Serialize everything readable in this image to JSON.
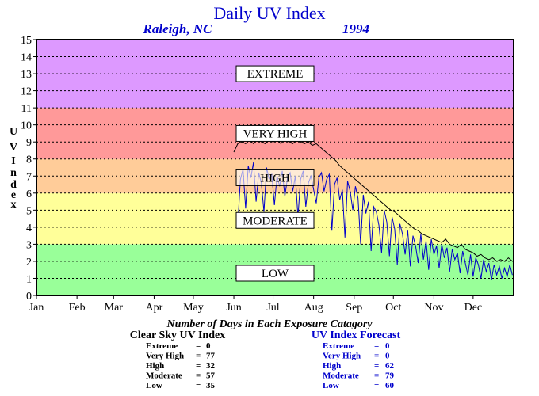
{
  "chart_data": {
    "type": "line",
    "title": "Daily UV Index",
    "location": "Raleigh, NC",
    "year": "1994",
    "ylabel": "UV Index",
    "ylim": [
      0,
      15
    ],
    "yticks": [
      "0",
      "1",
      "2",
      "3",
      "4",
      "5",
      "6",
      "7",
      "8",
      "9",
      "10",
      "11",
      "12",
      "13",
      "14",
      "15"
    ],
    "months": [
      "Jan",
      "Feb",
      "Mar",
      "Apr",
      "May",
      "Jun",
      "Jul",
      "Aug",
      "Sep",
      "Oct",
      "Nov",
      "Dec"
    ],
    "xlim": [
      1,
      366
    ],
    "grid": "dotted horizontal",
    "zones": [
      {
        "name": "LOW",
        "from": 0,
        "to": 3,
        "color": "#99ff99"
      },
      {
        "name": "MODERATE",
        "from": 3,
        "to": 6,
        "color": "#ffff99"
      },
      {
        "name": "HIGH",
        "from": 6,
        "to": 8,
        "color": "#ffcc99"
      },
      {
        "name": "VERY HIGH",
        "from": 8,
        "to": 11,
        "color": "#ff9999"
      },
      {
        "name": "EXTREME",
        "from": 11,
        "to": 15,
        "color": "#dd99ff"
      }
    ],
    "series": [
      {
        "name": "Clear Sky UV Index",
        "color": "#000000",
        "x": [
          152,
          155,
          158,
          161,
          164,
          167,
          170,
          173,
          176,
          179,
          182,
          185,
          188,
          191,
          194,
          197,
          200,
          203,
          206,
          209,
          212,
          215,
          218,
          221,
          224,
          227,
          230,
          233,
          236,
          239,
          242,
          245,
          248,
          251,
          254,
          257,
          260,
          263,
          266,
          269,
          272,
          275,
          278,
          281,
          284,
          287,
          290,
          293,
          296,
          299,
          302,
          305,
          308,
          311,
          314,
          317,
          320,
          323,
          326,
          329,
          332,
          335,
          338,
          341,
          344,
          347,
          350,
          353,
          356,
          359,
          362,
          365
        ],
        "values": [
          8.4,
          8.9,
          9.0,
          8.9,
          9.1,
          8.9,
          9.2,
          9.0,
          8.9,
          9.1,
          9.0,
          9.1,
          8.9,
          9.2,
          9.0,
          8.9,
          9.1,
          9.0,
          8.9,
          9.0,
          8.8,
          8.9,
          8.7,
          8.5,
          8.3,
          8.1,
          7.9,
          7.6,
          7.4,
          7.2,
          7.0,
          6.8,
          6.6,
          6.4,
          6.2,
          6.0,
          5.8,
          5.6,
          5.4,
          5.2,
          5.0,
          4.9,
          4.7,
          4.5,
          4.3,
          4.1,
          3.9,
          3.8,
          3.6,
          3.5,
          3.4,
          3.3,
          3.2,
          3.1,
          3.3,
          3.0,
          2.9,
          2.8,
          3.0,
          2.7,
          2.6,
          2.5,
          2.3,
          2.4,
          2.2,
          2.1,
          2.2,
          2.0,
          2.1,
          2.0,
          2.2,
          2.0
        ]
      },
      {
        "name": "UV Index Forecast",
        "color": "#0000cc",
        "x": [
          155,
          157,
          159,
          161,
          163,
          165,
          167,
          169,
          171,
          173,
          175,
          177,
          179,
          181,
          183,
          185,
          187,
          189,
          191,
          193,
          195,
          197,
          199,
          201,
          203,
          205,
          207,
          209,
          211,
          213,
          215,
          217,
          219,
          221,
          223,
          225,
          227,
          229,
          231,
          233,
          235,
          237,
          239,
          241,
          243,
          245,
          247,
          249,
          251,
          253,
          255,
          257,
          259,
          261,
          263,
          265,
          267,
          269,
          271,
          273,
          275,
          277,
          279,
          281,
          283,
          285,
          287,
          289,
          291,
          293,
          295,
          297,
          299,
          301,
          303,
          305,
          307,
          309,
          311,
          313,
          315,
          317,
          319,
          321,
          323,
          325,
          327,
          329,
          331,
          333,
          335,
          337,
          339,
          341,
          343,
          345,
          347,
          349,
          351,
          353,
          355,
          357,
          359,
          361,
          363,
          365
        ],
        "values": [
          4.2,
          6.8,
          7.4,
          5.1,
          7.6,
          6.9,
          7.8,
          5.5,
          7.2,
          6.6,
          4.9,
          7.5,
          6.8,
          7.1,
          5.3,
          7.0,
          6.4,
          7.3,
          5.8,
          6.9,
          7.2,
          6.1,
          7.0,
          4.6,
          6.8,
          7.3,
          5.2,
          6.6,
          7.0,
          6.2,
          5.4,
          6.9,
          7.2,
          6.1,
          6.8,
          7.1,
          3.8,
          6.5,
          6.9,
          5.6,
          6.2,
          3.4,
          6.7,
          6.1,
          5.0,
          6.4,
          5.7,
          3.0,
          5.9,
          4.8,
          5.5,
          2.6,
          5.2,
          4.9,
          4.1,
          2.5,
          5.0,
          4.3,
          2.3,
          4.6,
          3.9,
          1.8,
          4.2,
          3.6,
          2.4,
          3.8,
          1.7,
          3.5,
          2.9,
          1.9,
          3.6,
          2.1,
          3.2,
          1.5,
          3.3,
          2.4,
          2.9,
          1.6,
          3.0,
          2.2,
          2.8,
          1.4,
          2.7,
          2.1,
          2.5,
          1.3,
          2.6,
          1.9,
          1.2,
          2.4,
          1.1,
          2.2,
          1.8,
          1.0,
          2.1,
          1.4,
          1.9,
          0.9,
          1.8,
          1.2,
          1.7,
          1.0,
          1.6,
          1.1,
          1.8,
          1.2
        ]
      }
    ],
    "caption": "Number of Days in Each Exposure Catagory",
    "tables": [
      {
        "title": "Clear Sky UV Index",
        "rows": [
          {
            "label": "Extreme",
            "eq": "=",
            "value": "0"
          },
          {
            "label": "Very High",
            "eq": "=",
            "value": "77"
          },
          {
            "label": "High",
            "eq": "=",
            "value": "32"
          },
          {
            "label": "Moderate",
            "eq": "=",
            "value": "57"
          },
          {
            "label": "Low",
            "eq": "=",
            "value": "35"
          }
        ]
      },
      {
        "title": "UV Index Forecast",
        "rows": [
          {
            "label": "Extreme",
            "eq": "=",
            "value": "0"
          },
          {
            "label": "Very High",
            "eq": "=",
            "value": "0"
          },
          {
            "label": "High",
            "eq": "=",
            "value": "62"
          },
          {
            "label": "Moderate",
            "eq": "=",
            "value": "79"
          },
          {
            "label": "Low",
            "eq": "=",
            "value": "60"
          }
        ]
      }
    ]
  }
}
